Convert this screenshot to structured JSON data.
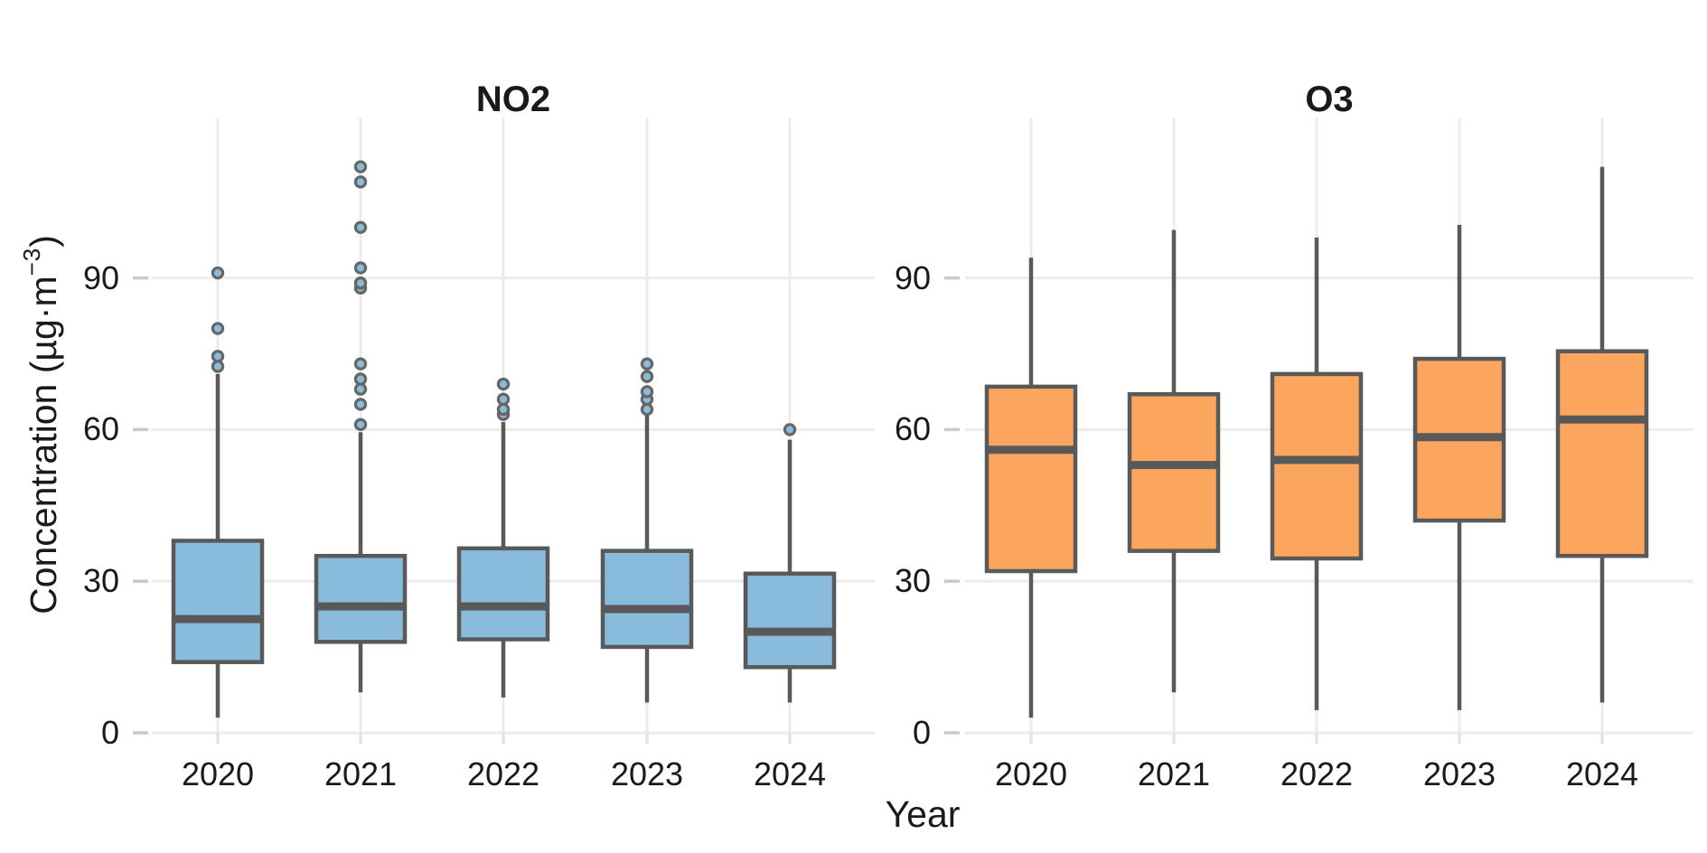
{
  "chart_data": {
    "type": "boxplot",
    "xlabel": "Year",
    "ylabel": {
      "prefix": "Concentration (µg·m",
      "sup": "−3",
      "suffix": ")"
    },
    "categories": [
      "2020",
      "2021",
      "2022",
      "2023",
      "2024"
    ],
    "y_ticks": [
      0,
      30,
      60,
      90
    ],
    "ylim": [
      0,
      122
    ],
    "grid": true,
    "colors": {
      "box_edge": "#595959",
      "outlier_edge": "#666666",
      "gridline": "#ececec",
      "axis_tick": "#c9c9c9",
      "minor_tick": "#e2e2e2",
      "text": "#1a1a1a",
      "background": "#ffffff"
    },
    "panels": [
      {
        "title": "NO2",
        "fill": "#89BCDC",
        "boxes": [
          {
            "category": "2020",
            "whisker_low": 3,
            "q1": 14,
            "median": 22.5,
            "q3": 38,
            "whisker_high": 71,
            "outliers": [
              72.5,
              74.5,
              80,
              91
            ]
          },
          {
            "category": "2021",
            "whisker_low": 8,
            "q1": 18,
            "median": 25,
            "q3": 35,
            "whisker_high": 59.5,
            "outliers": [
              61,
              65,
              68,
              70,
              73,
              88,
              89,
              92,
              100,
              109,
              112
            ]
          },
          {
            "category": "2022",
            "whisker_low": 7,
            "q1": 18.5,
            "median": 25,
            "q3": 36.5,
            "whisker_high": 61.5,
            "outliers": [
              63,
              64,
              66,
              69
            ]
          },
          {
            "category": "2023",
            "whisker_low": 6,
            "q1": 17,
            "median": 24.5,
            "q3": 36,
            "whisker_high": 63,
            "outliers": [
              64,
              66,
              67.5,
              70.5,
              73
            ]
          },
          {
            "category": "2024",
            "whisker_low": 6,
            "q1": 13,
            "median": 20,
            "q3": 31.5,
            "whisker_high": 58,
            "outliers": [
              60
            ]
          }
        ]
      },
      {
        "title": "O3",
        "fill": "#FCA55F",
        "boxes": [
          {
            "category": "2020",
            "whisker_low": 3,
            "q1": 32,
            "median": 56,
            "q3": 68.5,
            "whisker_high": 94,
            "outliers": []
          },
          {
            "category": "2021",
            "whisker_low": 8,
            "q1": 36,
            "median": 53,
            "q3": 67,
            "whisker_high": 99.5,
            "outliers": []
          },
          {
            "category": "2022",
            "whisker_low": 4.5,
            "q1": 34.5,
            "median": 54,
            "q3": 71,
            "whisker_high": 98,
            "outliers": []
          },
          {
            "category": "2023",
            "whisker_low": 4.5,
            "q1": 42,
            "median": 58.5,
            "q3": 74,
            "whisker_high": 100.5,
            "outliers": []
          },
          {
            "category": "2024",
            "whisker_low": 6,
            "q1": 35,
            "median": 62,
            "q3": 75.5,
            "whisker_high": 112,
            "outliers": []
          }
        ]
      }
    ]
  }
}
